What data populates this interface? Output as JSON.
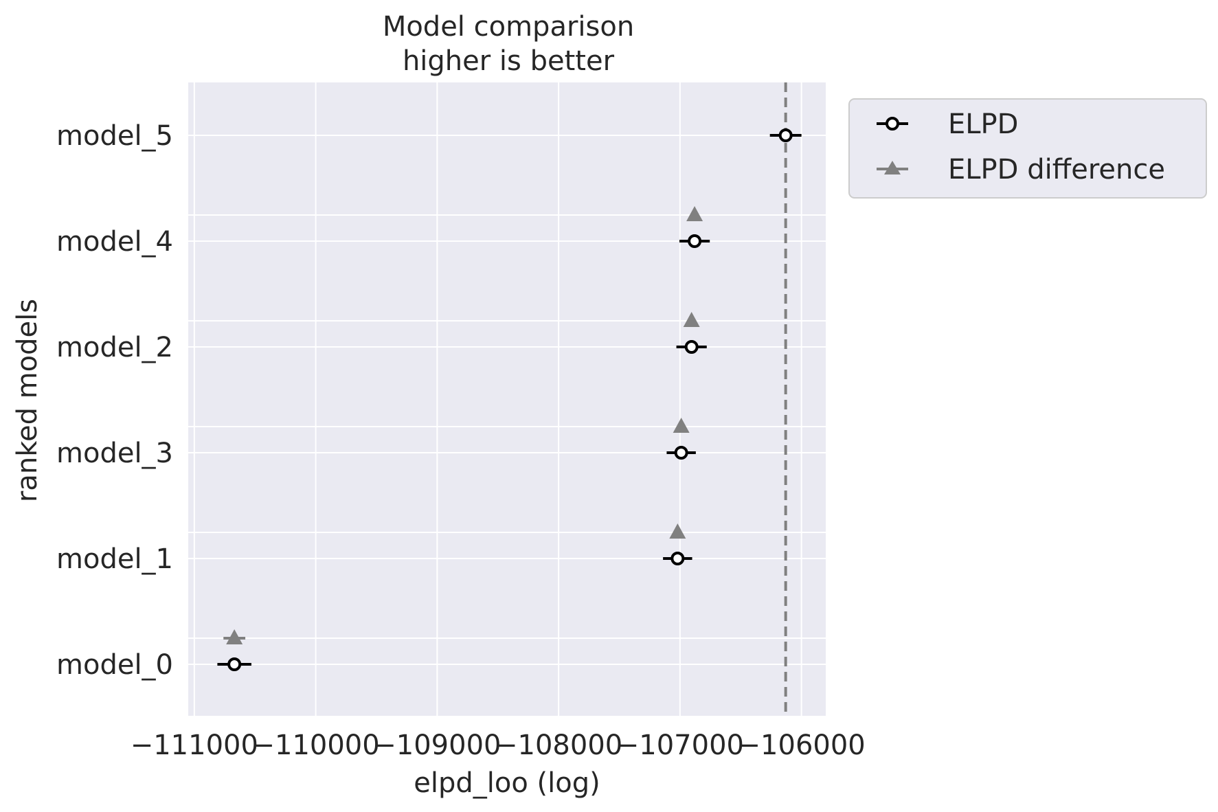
{
  "chart_data": {
    "type": "scatter",
    "title_line1": "Model comparison",
    "title_line2": "higher is better",
    "xlabel": "elpd_loo (log)",
    "ylabel": "ranked models",
    "xlim": [
      -111050,
      -105800
    ],
    "x_ticks": [
      -111000,
      -110000,
      -109000,
      -108000,
      -107000,
      -106000
    ],
    "x_tick_labels": [
      "−111000",
      "−110000",
      "−109000",
      "−108000",
      "−107000",
      "−106000"
    ],
    "categories": [
      "model_5",
      "model_4",
      "model_2",
      "model_3",
      "model_1",
      "model_0"
    ],
    "series": [
      {
        "name": "ELPD",
        "marker": "open-circle",
        "color": "#000000",
        "values": [
          -106130,
          -106880,
          -106905,
          -106990,
          -107020,
          -110670
        ],
        "se": [
          130,
          125,
          125,
          120,
          120,
          140
        ]
      },
      {
        "name": "ELPD difference",
        "marker": "triangle",
        "color": "#808080",
        "values": [
          -106880,
          -106905,
          -106990,
          -107020,
          -110670
        ],
        "se": [
          20,
          20,
          20,
          20,
          90
        ]
      }
    ],
    "reference_line": {
      "x": -106130,
      "style": "dashed",
      "color": "#808080"
    },
    "grid": true,
    "background": "#eaeaf2",
    "legend_position": "outside-top-right"
  }
}
